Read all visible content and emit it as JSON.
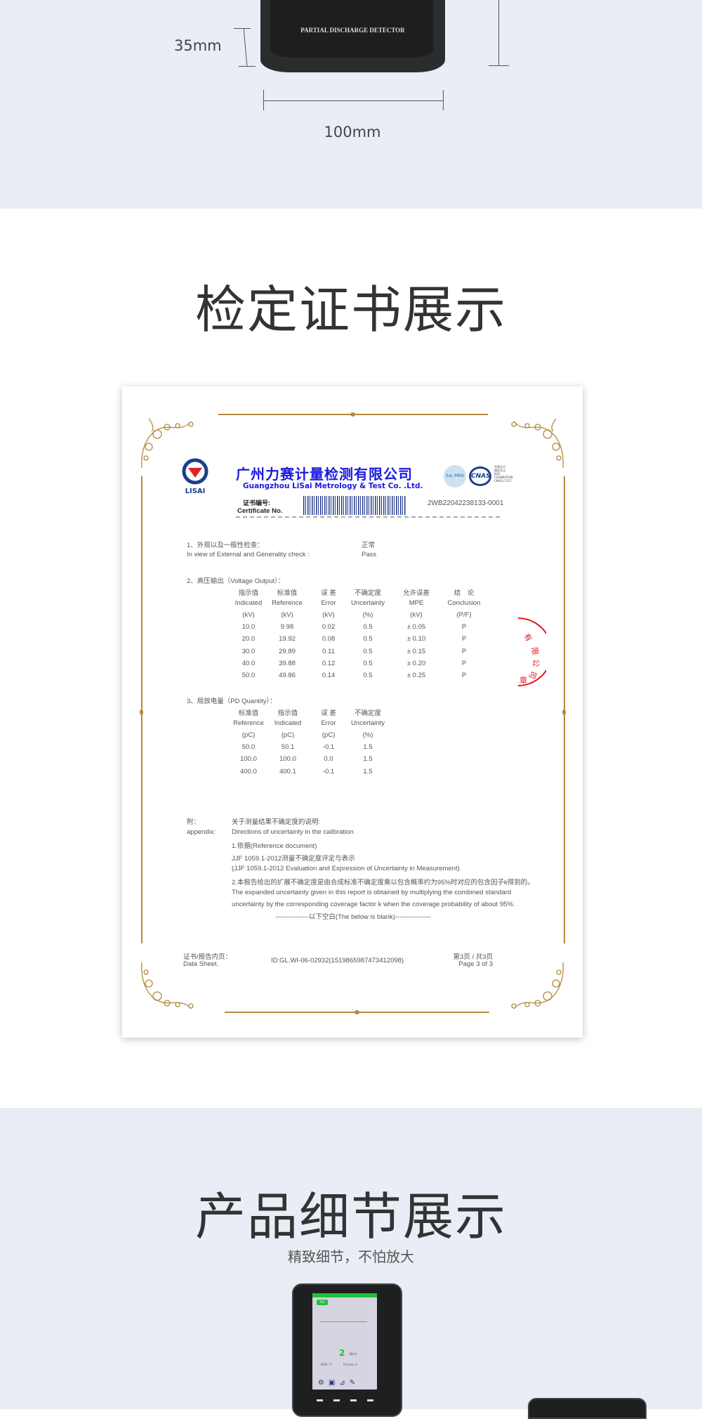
{
  "dimensions": {
    "height_label": "35mm",
    "width_label": "100mm",
    "device_label": "PARTIAL DISCHARGE DETECTOR"
  },
  "certificate_section": {
    "title": "检定证书展示"
  },
  "certificate": {
    "logo_text": "LISAI",
    "company_cn": "广州力赛计量检测有限公司",
    "company_en": "Guangzhou LiSai Metrology & Test Co. .Ltd.",
    "accreditation": [
      "ilac-MRA",
      "CNAS",
      "中国认可",
      "国际互认",
      "检测",
      "CALIBRATION",
      "CNAS L7127"
    ],
    "cert_no_label_cn": "证书编号:",
    "cert_no_label_en": "Certificate No.",
    "cert_no": "2WB22042238133-0001",
    "seal_text": "有限公司",
    "seal_text2": "章",
    "s1": {
      "title_cn": "1、外观以及一般性检查：",
      "title_en": "In view of External and Generality check :",
      "value_cn": "正常",
      "value_en": "Pass"
    },
    "s2": {
      "title": "2、高压输出（Voltage Output）：",
      "headers": [
        [
          "指示值",
          "Indicated",
          "(kV)"
        ],
        [
          "标准值",
          "Reference",
          "(kV)"
        ],
        [
          "误 差",
          "Error",
          "(kV)"
        ],
        [
          "不确定度",
          "Uncertainty",
          "(%)"
        ],
        [
          "允许误差",
          "MPE",
          "(kV)"
        ],
        [
          "结　论",
          "Conclusion",
          "(P/F)"
        ]
      ],
      "rows": [
        [
          "10.0",
          "9.98",
          "0.02",
          "0.5",
          "±  0.05",
          "P"
        ],
        [
          "20.0",
          "19.92",
          "0.08",
          "0.5",
          "±  0.10",
          "P"
        ],
        [
          "30.0",
          "29.89",
          "0.11",
          "0.5",
          "±  0.15",
          "P"
        ],
        [
          "40.0",
          "39.88",
          "0.12",
          "0.5",
          "±  0.20",
          "P"
        ],
        [
          "50.0",
          "49.86",
          "0.14",
          "0.5",
          "±  0.25",
          "P"
        ]
      ]
    },
    "s3": {
      "title": "3、局放电量（PD Quantity）：",
      "headers": [
        [
          "标准值",
          "Reference",
          "(pC)"
        ],
        [
          "指示值",
          "Indicated",
          "(pC)"
        ],
        [
          "误 差",
          "Error",
          "(pC)"
        ],
        [
          "不确定度",
          "Uncertainty",
          "(%)"
        ]
      ],
      "rows": [
        [
          "50.0",
          "50.1",
          "-0.1",
          "1.5"
        ],
        [
          "100.0",
          "100.0",
          "0.0",
          "1.5"
        ],
        [
          "400.0",
          "400.1",
          "-0.1",
          "1.5"
        ]
      ]
    },
    "appendix": {
      "label_cn": "附：",
      "label_en": "appendix:",
      "lines": [
        "关于测量结果不确定度的说明:",
        "Directions of uncertainty in the calibration",
        "1.依据(Reference document)",
        "JJF 1059.1-2012测量不确定度评定与表示",
        "(JJF 1059.1-2012 Evaluation and Expression of Uncertainty in Measurement)",
        "2.本报告给出的扩展不确定度是由合成标准不确定度乘以包含概率约为95%时对应的包含因子k得到的。",
        "The expanded uncertainty given in this report is obtained by multiplying the combined standard",
        "uncertainty by the corresponding coverage factor k when the coverage probability of about 95%."
      ],
      "blank": "---------------以下空白(The below is blank)----------------"
    },
    "footer": {
      "label_cn": "证书/报告内页：",
      "label_en": "Data Sheet.",
      "id": "ID:GL.WI-06-02932(1519865987473412098)",
      "page_cn": "第3页 / 共3页",
      "page_en": "Page 3 of 3"
    }
  },
  "detail_section": {
    "title": "产品细节展示",
    "subtitle": "精致细节，不怕放大"
  },
  "device_screen": {
    "mode": "TEV",
    "reading": "2",
    "unit": "dBmV",
    "max": "MAX: 17",
    "pcycle": "P/Cycle: 0"
  },
  "colors": {
    "band": "#e9edf5",
    "gold": "#b48a3c",
    "company_blue": "#1a1ae0",
    "seal_red": "#e8141e",
    "screen_green": "#22c03a"
  }
}
